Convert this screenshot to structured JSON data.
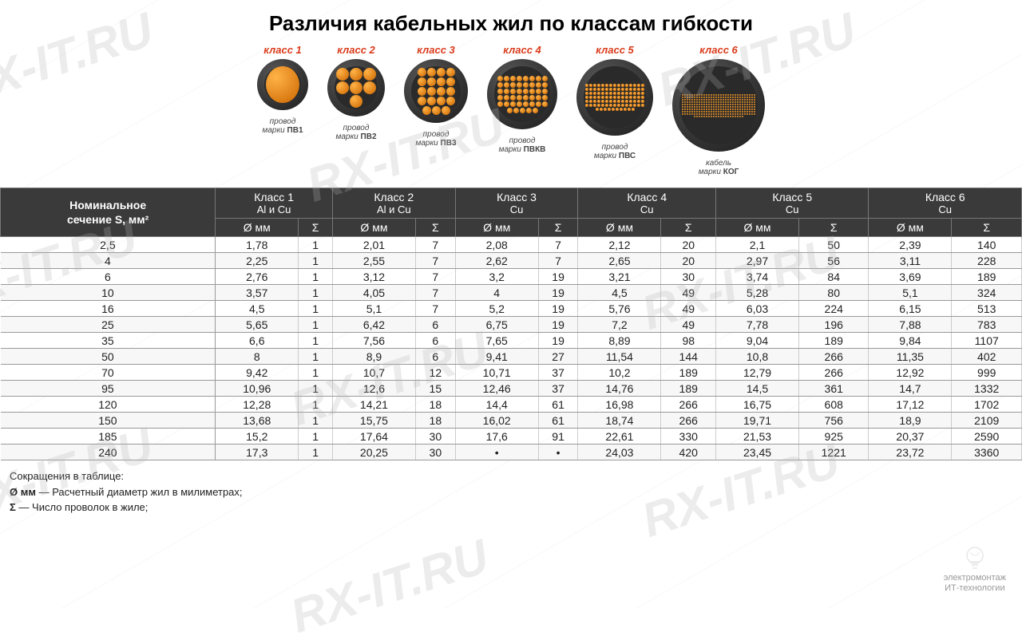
{
  "title": "Различия кабельных жил по классам гибкости",
  "watermark_text": "RX-IT.RU",
  "cables": [
    {
      "label": "класс 1",
      "size": 64,
      "inner": 46,
      "strands": 1,
      "strand_size": 46,
      "sub_line1": "провод",
      "sub_line2": "марки",
      "sub_mark": "ПВ1"
    },
    {
      "label": "класс 2",
      "size": 72,
      "inner": 54,
      "strands": 7,
      "strand_size": 16,
      "sub_line1": "провод",
      "sub_line2": "марки",
      "sub_mark": "ПВ2"
    },
    {
      "label": "класс 3",
      "size": 80,
      "inner": 62,
      "strands": 19,
      "strand_size": 11,
      "sub_line1": "провод",
      "sub_line2": "марки",
      "sub_mark": "ПВ3"
    },
    {
      "label": "класс 4",
      "size": 88,
      "inner": 70,
      "strands": 45,
      "strand_size": 7,
      "sub_line1": "провод",
      "sub_line2": "марки",
      "sub_mark": "ПВКВ"
    },
    {
      "label": "класс 5",
      "size": 96,
      "inner": 78,
      "strands": 100,
      "strand_size": 4,
      "sub_line1": "провод",
      "sub_line2": "марки",
      "sub_mark": "ПВС"
    },
    {
      "label": "класс 6",
      "size": 116,
      "inner": 98,
      "strands": 300,
      "strand_size": 2,
      "sub_line1": "кабель",
      "sub_line2": "марки",
      "sub_mark": "КОГ"
    }
  ],
  "table": {
    "row_header_l1": "Номинальное",
    "row_header_l2": "сечение S, мм²",
    "class_groups": [
      {
        "name": "Класс 1",
        "mat": "Al и Cu"
      },
      {
        "name": "Класс 2",
        "mat": "Al и Cu"
      },
      {
        "name": "Класс 3",
        "mat": "Cu"
      },
      {
        "name": "Класс 4",
        "mat": "Cu"
      },
      {
        "name": "Класс 5",
        "mat": "Cu"
      },
      {
        "name": "Класс 6",
        "mat": "Cu"
      }
    ],
    "sub_d": "Ø мм",
    "sub_s": "Σ",
    "rows": [
      [
        "2,5",
        "1,78",
        "1",
        "2,01",
        "7",
        "2,08",
        "7",
        "2,12",
        "20",
        "2,1",
        "50",
        "2,39",
        "140"
      ],
      [
        "4",
        "2,25",
        "1",
        "2,55",
        "7",
        "2,62",
        "7",
        "2,65",
        "20",
        "2,97",
        "56",
        "3,11",
        "228"
      ],
      [
        "6",
        "2,76",
        "1",
        "3,12",
        "7",
        "3,2",
        "19",
        "3,21",
        "30",
        "3,74",
        "84",
        "3,69",
        "189"
      ],
      [
        "10",
        "3,57",
        "1",
        "4,05",
        "7",
        "4",
        "19",
        "4,5",
        "49",
        "5,28",
        "80",
        "5,1",
        "324"
      ],
      [
        "16",
        "4,5",
        "1",
        "5,1",
        "7",
        "5,2",
        "19",
        "5,76",
        "49",
        "6,03",
        "224",
        "6,15",
        "513"
      ],
      [
        "25",
        "5,65",
        "1",
        "6,42",
        "6",
        "6,75",
        "19",
        "7,2",
        "49",
        "7,78",
        "196",
        "7,88",
        "783"
      ],
      [
        "35",
        "6,6",
        "1",
        "7,56",
        "6",
        "7,65",
        "19",
        "8,89",
        "98",
        "9,04",
        "189",
        "9,84",
        "1107"
      ],
      [
        "50",
        "8",
        "1",
        "8,9",
        "6",
        "9,41",
        "27",
        "11,54",
        "144",
        "10,8",
        "266",
        "11,35",
        "402"
      ],
      [
        "70",
        "9,42",
        "1",
        "10,7",
        "12",
        "10,71",
        "37",
        "10,2",
        "189",
        "12,79",
        "266",
        "12,92",
        "999"
      ],
      [
        "95",
        "10,96",
        "1",
        "12,6",
        "15",
        "12,46",
        "37",
        "14,76",
        "189",
        "14,5",
        "361",
        "14,7",
        "1332"
      ],
      [
        "120",
        "12,28",
        "1",
        "14,21",
        "18",
        "14,4",
        "61",
        "16,98",
        "266",
        "16,75",
        "608",
        "17,12",
        "1702"
      ],
      [
        "150",
        "13,68",
        "1",
        "15,75",
        "18",
        "16,02",
        "61",
        "18,74",
        "266",
        "19,71",
        "756",
        "18,9",
        "2109"
      ],
      [
        "185",
        "15,2",
        "1",
        "17,64",
        "30",
        "17,6",
        "91",
        "22,61",
        "330",
        "21,53",
        "925",
        "20,37",
        "2590"
      ],
      [
        "240",
        "17,3",
        "1",
        "20,25",
        "30",
        "•",
        "•",
        "24,03",
        "420",
        "23,45",
        "1221",
        "23,72",
        "3360"
      ]
    ]
  },
  "footnotes": {
    "title": "Сокращения в таблице:",
    "d_sym": "Ø мм",
    "d_text": " — Расчетный диаметр жил в милиметрах;",
    "s_sym": "Σ",
    "s_text": " — Число проволок в жиле;"
  },
  "logo": {
    "line1": "электромонтаж",
    "line2": "ИТ-технологии"
  },
  "colors": {
    "header_bg": "#3a3a3a",
    "accent_red": "#d93a1a",
    "copper_light": "#ffb347",
    "copper_dark": "#cc6600",
    "border": "#999999"
  }
}
